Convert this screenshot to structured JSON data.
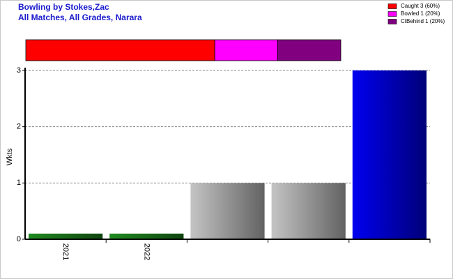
{
  "chart_data": [
    {
      "type": "bar",
      "title": "Bowling by Stokes,Zac",
      "subtitle": "All Matches, All Grades, Narara",
      "y_label": "Wkts",
      "categories": [
        "2021",
        "2022",
        null,
        null,
        null
      ],
      "values": [
        0.1,
        0.1,
        1,
        1,
        3
      ],
      "colors": [
        "#1f8a1f",
        "#1f8a1f",
        "#c4c4c4",
        "#c4c4c4",
        "#0000f0"
      ],
      "ylim": [
        0,
        3
      ],
      "yticks": [
        0,
        1,
        2,
        3
      ],
      "grid": true
    },
    {
      "type": "stacked-bar",
      "legend": "top-right",
      "series": [
        {
          "name": "Caught 3 (60%)",
          "color": "#ff0000",
          "values": [
            3
          ]
        },
        {
          "name": "Bowled 1 (20%)",
          "color": "#ff00ff",
          "values": [
            1
          ]
        },
        {
          "name": "CtBehind 1 (20%)",
          "color": "#800080",
          "values": [
            1
          ]
        }
      ]
    }
  ]
}
